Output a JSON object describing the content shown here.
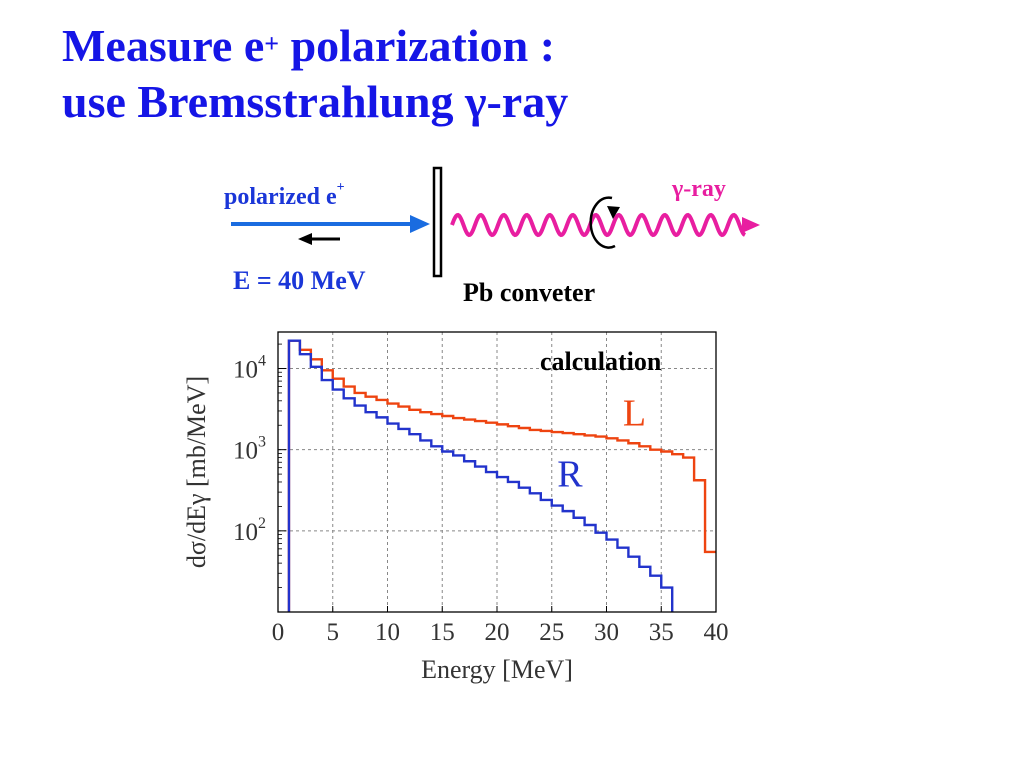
{
  "slide": {
    "title_line1_pre": "Measure e",
    "title_line1_sup": "+",
    "title_line1_post": " polarization :",
    "title_line2": "use Bremsstrahlung γ-ray"
  },
  "diagram": {
    "beam_label": "polarized e",
    "beam_label_sup": "+",
    "energy_label": "E = 40 MeV",
    "gamma_label": "γ-ray",
    "converter_label": "Pb conveter",
    "colors": {
      "beam": "#1a6ce0",
      "gamma": "#e81ea0",
      "text_blue": "#1a36d8"
    }
  },
  "chart_data": {
    "type": "line",
    "annotation": "calculation",
    "xlabel": "Energy [MeV]",
    "ylabel": "dσ/dEγ [mb/MeV]",
    "xlim": [
      0,
      40
    ],
    "ylim_log10": [
      1.0,
      4.45
    ],
    "log_y": true,
    "grid": true,
    "x_ticks": [
      "0",
      "5",
      "10",
      "15",
      "20",
      "25",
      "30",
      "35",
      "40"
    ],
    "y_ticks": [
      {
        "base": "10",
        "exp": "2",
        "value": 100
      },
      {
        "base": "10",
        "exp": "3",
        "value": 1000
      },
      {
        "base": "10",
        "exp": "4",
        "value": 10000
      }
    ],
    "series": [
      {
        "name": "L",
        "color": "#ee4410",
        "x": [
          1,
          2,
          3,
          4,
          5,
          6,
          7,
          8,
          9,
          10,
          11,
          12,
          13,
          14,
          15,
          16,
          17,
          18,
          19,
          20,
          21,
          22,
          23,
          24,
          25,
          26,
          27,
          28,
          29,
          30,
          31,
          32,
          33,
          34,
          35,
          36,
          37,
          38,
          39,
          40
        ],
        "y": [
          22000,
          17000,
          13000,
          9500,
          7500,
          6000,
          5000,
          4500,
          4100,
          3700,
          3400,
          3100,
          2900,
          2750,
          2600,
          2450,
          2350,
          2250,
          2150,
          2050,
          1950,
          1850,
          1750,
          1700,
          1650,
          1600,
          1550,
          1500,
          1450,
          1380,
          1300,
          1200,
          1100,
          1000,
          950,
          880,
          800,
          420,
          55,
          55
        ]
      },
      {
        "name": "R",
        "color": "#2233cc",
        "x": [
          1,
          2,
          3,
          4,
          5,
          6,
          7,
          8,
          9,
          10,
          11,
          12,
          13,
          14,
          15,
          16,
          17,
          18,
          19,
          20,
          21,
          22,
          23,
          24,
          25,
          26,
          27,
          28,
          29,
          30,
          31,
          32,
          33,
          34,
          35
        ],
        "y": [
          22000,
          15000,
          10500,
          7200,
          5500,
          4300,
          3500,
          2900,
          2500,
          2100,
          1800,
          1550,
          1300,
          1100,
          950,
          850,
          720,
          620,
          530,
          460,
          400,
          340,
          290,
          240,
          205,
          175,
          145,
          118,
          95,
          78,
          62,
          48,
          36,
          28,
          20
        ]
      }
    ]
  }
}
